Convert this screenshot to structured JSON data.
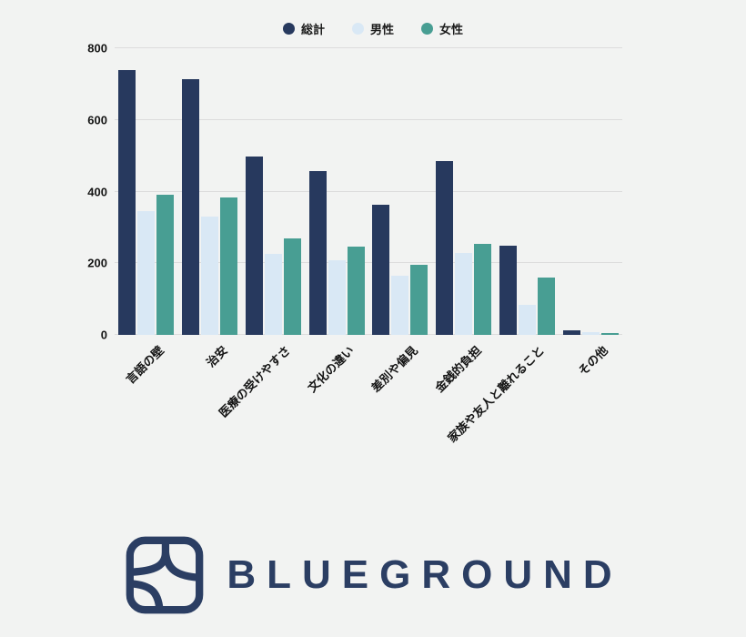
{
  "page": {
    "background": "#f2f3f2"
  },
  "chart_data": {
    "type": "bar",
    "title": "",
    "categories": [
      "言語の壁",
      "治安",
      "医療の受けやすさ",
      "文化の違い",
      "差別や偏見",
      "金銭的負担",
      "家族や友人と離れること",
      "その他"
    ],
    "series": [
      {
        "name": "総計",
        "color": "#27395e",
        "values": [
          739,
          714,
          497,
          456,
          363,
          486,
          250,
          12
        ]
      },
      {
        "name": "男性",
        "color": "#d9e8f5",
        "values": [
          345,
          329,
          227,
          209,
          166,
          228,
          85,
          8
        ]
      },
      {
        "name": "女性",
        "color": "#489e93",
        "values": [
          392,
          383,
          268,
          246,
          195,
          255,
          160,
          4
        ]
      }
    ],
    "ylim": [
      0,
      800
    ],
    "yticks": [
      0,
      200,
      400,
      600,
      800
    ],
    "xlabel": "",
    "ylabel": "",
    "grid": true,
    "grid_color": "#dcdcdc",
    "legend_position": "top"
  },
  "footer": {
    "brand": "BLUEGROUND",
    "logo_color": "#2b3e63"
  }
}
